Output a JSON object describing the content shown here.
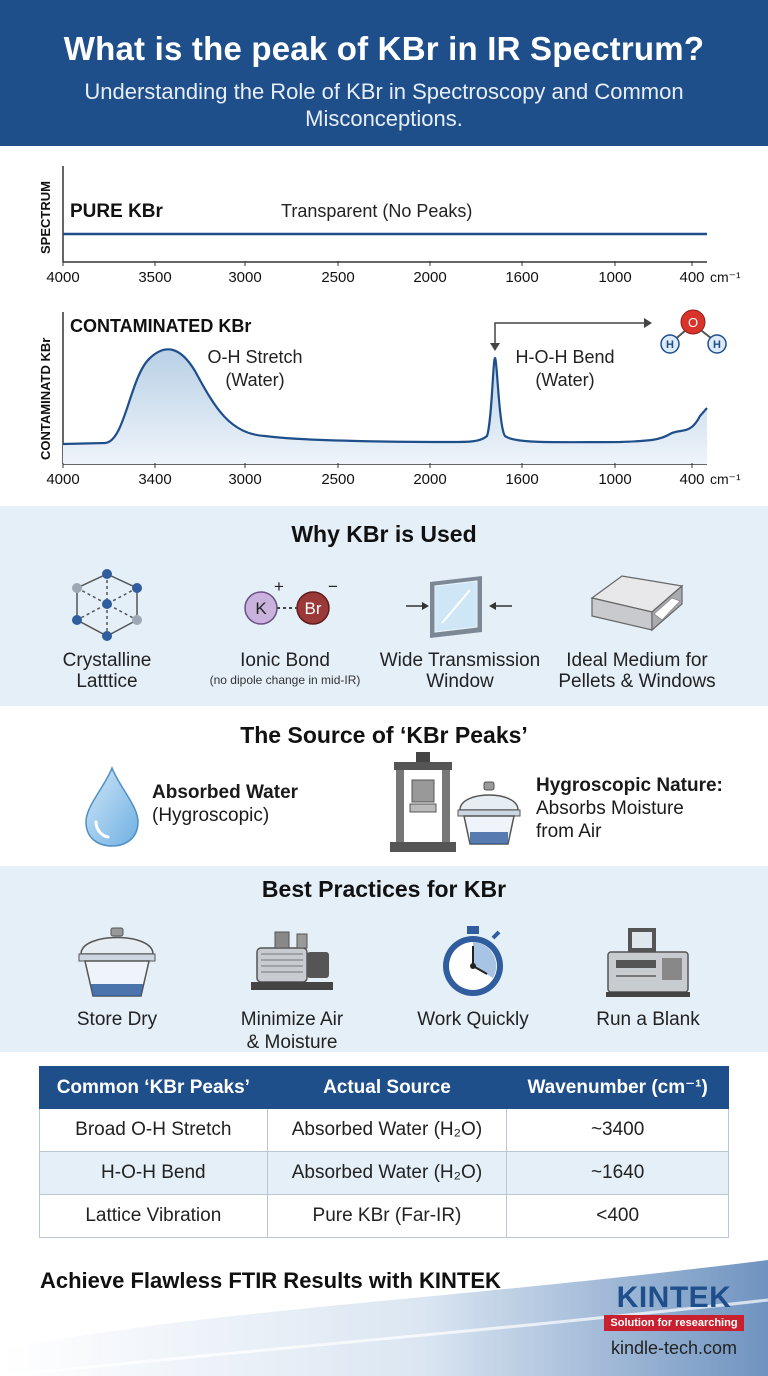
{
  "header": {
    "title": "What is the peak of KBr in IR Spectrum?",
    "subtitle": "Understanding the Role of KBr in Spectroscopy and Common Misconceptions."
  },
  "pure_spectrum": {
    "axis_label": "SPECTRUM",
    "name": "PURE KBr",
    "note": "Transparent (No Peaks)",
    "ticks": [
      "4000",
      "3500",
      "3000",
      "2500",
      "2000",
      "1600",
      "1000",
      "400"
    ],
    "unit": "cm⁻¹"
  },
  "contaminated_spectrum": {
    "axis_label": "CONTAMINATD KBr",
    "name": "CONTAMINATED KBr",
    "peak1": "O-H Stretch",
    "peak1_sub": "(Water)",
    "peak2": "H-O-H Bend",
    "peak2_sub": "(Water)",
    "ticks": [
      "4000",
      "3400",
      "3000",
      "2500",
      "2000",
      "1600",
      "1000",
      "400"
    ],
    "unit": "cm⁻¹",
    "molecule": {
      "o": "O",
      "h": "H"
    }
  },
  "why": {
    "title": "Why KBr is Used",
    "items": [
      {
        "label1": "Crystalline",
        "label2": "Latttice",
        "icon": "lattice-icon"
      },
      {
        "label1": "Ionic Bond",
        "note": "(no dipole change in mid-IR)",
        "icon": "ionic-bond-icon",
        "k": "K",
        "br": "Br",
        "plus": "+",
        "minus": "−"
      },
      {
        "label1": "Wide Transmission",
        "label2": "Window",
        "icon": "window-icon"
      },
      {
        "label1": "Ideal Medium for",
        "label2": "Pellets & Windows",
        "icon": "pellet-icon"
      }
    ]
  },
  "source": {
    "title": "The Source of ‘KBr Peaks’",
    "water_bold": "Absorbed Water",
    "water_sub": "(Hygroscopic)",
    "hyg_bold": "Hygroscopic Nature:",
    "hyg_line1": "Absorbs Moisture",
    "hyg_line2": "from Air"
  },
  "best": {
    "title": "Best Practices for KBr",
    "items": [
      {
        "label1": "Store Dry"
      },
      {
        "label1": "Minimize Air",
        "label2": "& Moisture"
      },
      {
        "label1": "Work Quickly"
      },
      {
        "label1": "Run a Blank"
      }
    ]
  },
  "table": {
    "headers": [
      "Common ‘KBr Peaks’",
      "Actual Source",
      "Wavenumber (cm⁻¹)"
    ],
    "rows": [
      [
        "Broad O-H Stretch",
        "Absorbed Water (H₂O)",
        "~3400"
      ],
      [
        "H-O-H Bend",
        "Absorbed Water (H₂O)",
        "~1640"
      ],
      [
        "Lattice Vibration",
        "Pure KBr (Far-IR)",
        "<400"
      ]
    ]
  },
  "footer": {
    "cta": "Achieve Flawless FTIR Results with KINTEK",
    "brand": "KINTEK",
    "tagline": "Solution for researching",
    "url": "kindle-tech.com"
  },
  "colors": {
    "primary": "#1f4f8b",
    "light_band": "#e4eff8",
    "accent_red": "#c8202f"
  }
}
